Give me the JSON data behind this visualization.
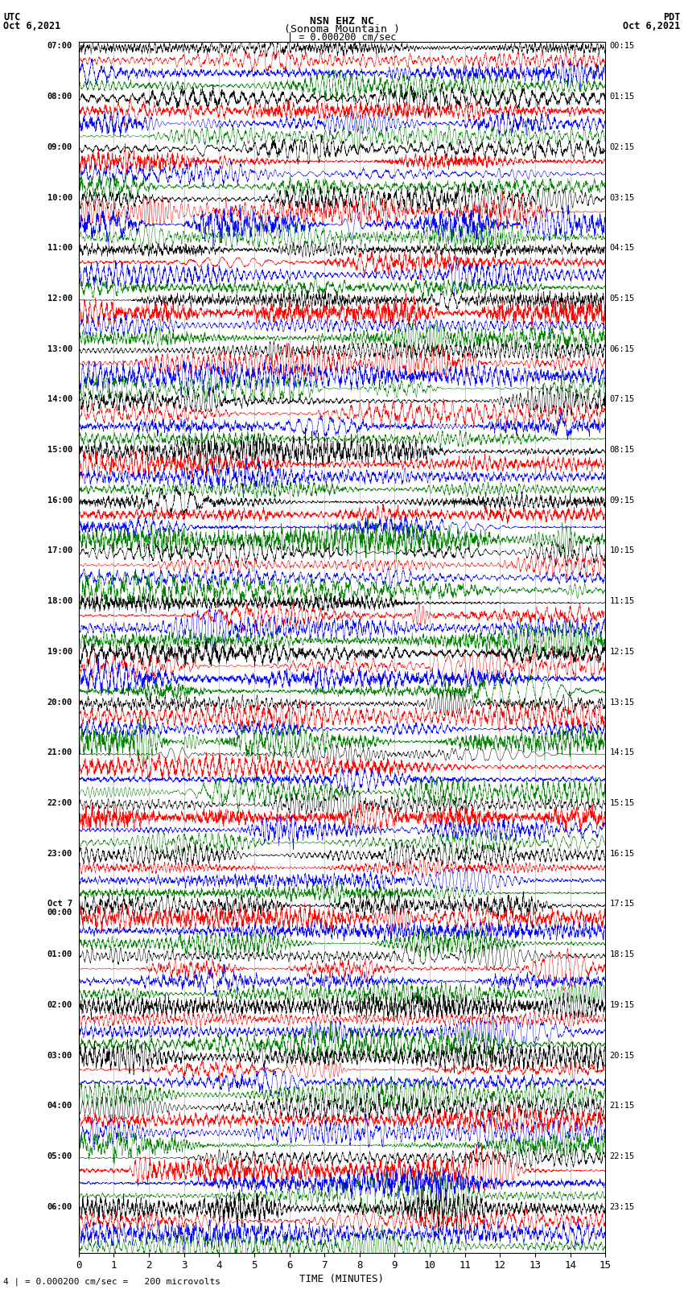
{
  "title_line1": "NSN EHZ NC",
  "title_line2": "(Sonoma Mountain )",
  "title_line3": "| = 0.000200 cm/sec",
  "left_header": "UTC",
  "left_date": "Oct 6,2021",
  "right_header": "PDT",
  "right_date": "Oct 6,2021",
  "xlabel": "TIME (MINUTES)",
  "footer": "4 | = 0.000200 cm/sec =   200 microvolts",
  "xlim": [
    0,
    15
  ],
  "xticks": [
    0,
    1,
    2,
    3,
    4,
    5,
    6,
    7,
    8,
    9,
    10,
    11,
    12,
    13,
    14,
    15
  ],
  "utc_labels": [
    "07:00",
    "08:00",
    "09:00",
    "10:00",
    "11:00",
    "12:00",
    "13:00",
    "14:00",
    "15:00",
    "16:00",
    "17:00",
    "18:00",
    "19:00",
    "20:00",
    "21:00",
    "22:00",
    "23:00",
    "Oct 7\n00:00",
    "01:00",
    "02:00",
    "03:00",
    "04:00",
    "05:00",
    "06:00"
  ],
  "pdt_labels": [
    "00:15",
    "01:15",
    "02:15",
    "03:15",
    "04:15",
    "05:15",
    "06:15",
    "07:15",
    "08:15",
    "09:15",
    "10:15",
    "11:15",
    "12:15",
    "13:15",
    "14:15",
    "15:15",
    "16:15",
    "17:15",
    "18:15",
    "19:15",
    "20:15",
    "21:15",
    "22:15",
    "23:15"
  ],
  "trace_colors": [
    "black",
    "red",
    "blue",
    "green"
  ],
  "n_rows": 96,
  "n_groups": 24,
  "background_color": "white",
  "grid_color": "#999999",
  "noise_seed": 42
}
